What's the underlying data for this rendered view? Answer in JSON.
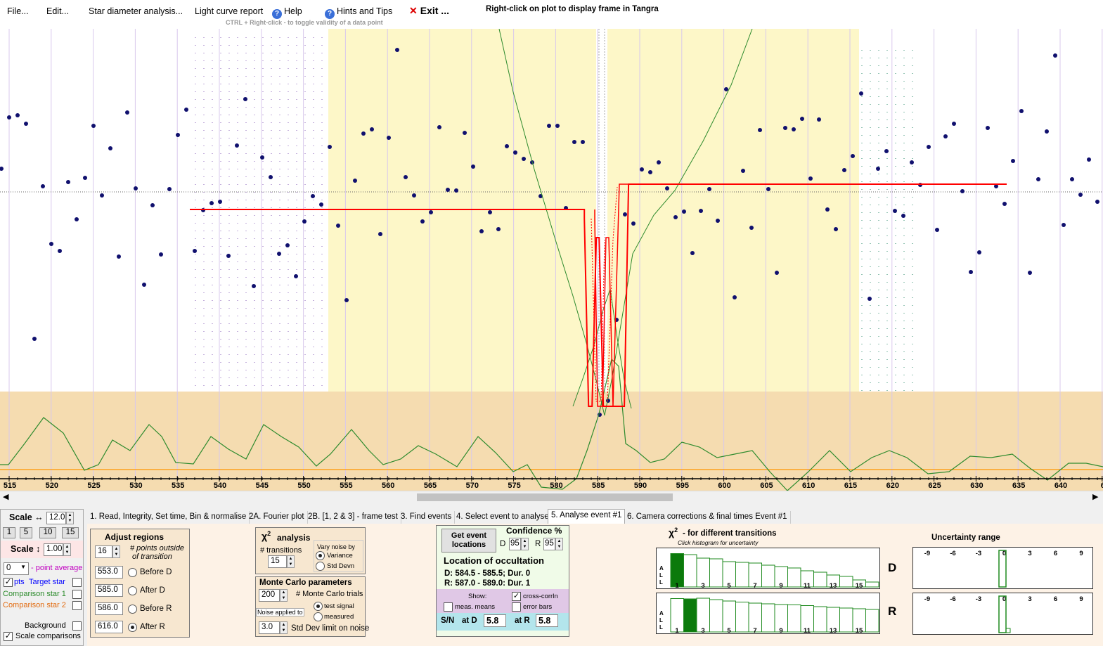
{
  "menu": {
    "file": "File...",
    "edit": "Edit...",
    "star_diameter": "Star diameter analysis...",
    "light_curve": "Light curve report",
    "help": "Help",
    "hints": "Hints and Tips",
    "exit": "Exit ...",
    "right_click_hint": "Right-click on plot to display frame in Tangra",
    "ctrl_hint": "CTRL + Right-click  -  to toggle validity of a data point"
  },
  "plot": {
    "x_ticks": [
      "515",
      "520",
      "525",
      "530",
      "535",
      "540",
      "545",
      "550",
      "555",
      "560",
      "565",
      "570",
      "575",
      "580",
      "585",
      "590",
      "595",
      "600",
      "605",
      "610",
      "615",
      "620",
      "625",
      "630",
      "635",
      "640",
      "6"
    ],
    "colors": {
      "point": "#10106e",
      "model": "#ff0000",
      "chi": "#2e8b2e",
      "highlight": "#fdf7c8",
      "lower": "#f5dcb0"
    }
  },
  "chart_data": {
    "type": "scatter",
    "x_axis_ticks": [
      515,
      520,
      525,
      530,
      535,
      540,
      545,
      550,
      555,
      560,
      565,
      570,
      575,
      580,
      585,
      590,
      595,
      600,
      605,
      610,
      615,
      620,
      625,
      630,
      635,
      640
    ],
    "model_D": 584.5,
    "model_R": 587.5,
    "grid": true
  },
  "tabs": [
    "1.  Read, Integrity, Set time, Bin & normalise",
    "2A. Fourier plot",
    "2B. [1, 2 & 3] - frame test",
    "3. Find events",
    "4. Select event to analyse",
    "5. Analyse event #1",
    "6. Camera corrections & final times Event #1"
  ],
  "left": {
    "scale_h_label": "Scale ↔",
    "scale_h_value": "12.0",
    "scale_buttons": [
      "1",
      "5",
      "10",
      "15"
    ],
    "scale_v_label": "Scale ↕",
    "scale_v_value": "1.00",
    "point_avg_value": "0",
    "point_avg_label": "- point average",
    "pts": "pts",
    "target": "Target star",
    "comp1": "Comparison star 1",
    "comp2": "Comparison star 2",
    "background": "Background",
    "scale_comparisons": "Scale comparisons"
  },
  "adjust": {
    "title": "Adjust regions",
    "points_value": "16",
    "points_label1": "# points outside",
    "points_label2": "of transition",
    "before_d_val": "553.0",
    "before_d": "Before D",
    "after_d_val": "585.0",
    "after_d": "After D",
    "before_r_val": "586.0",
    "before_r": "Before R",
    "after_r_val": "616.0",
    "after_r": "After R"
  },
  "chi": {
    "title": "analysis",
    "transitions_label": "# transitions",
    "transitions_value": "15",
    "vary_label": "Vary noise by",
    "variance": "Variance",
    "std_devn": "Std Devn"
  },
  "mc": {
    "title": "Monte Carlo parameters",
    "trials_value": "200",
    "trials_label": "# Monte Carlo trials",
    "noise_applied": "Noise applied to",
    "test_signal": "test signal",
    "measured": "measured",
    "std_value": "3.0",
    "std_label": "Std Dev limit on noise"
  },
  "event": {
    "get_btn1": "Get event",
    "get_btn2": "locations",
    "confidence": "Confidence %",
    "d_label": "D",
    "d_value": "95",
    "r_label": "R",
    "r_value": "95",
    "location_title": "Location of occultation",
    "d_line": "D: 584.5 - 585.5; Dur. 0",
    "r_line": "R: 587.0 - 589.0; Dur. 1",
    "show": "Show:",
    "cross": "cross-corrln",
    "means": "meas. means",
    "error_bars": "error bars",
    "sn": "S/N",
    "at_d": "at D",
    "at_d_val": "5.8",
    "at_r": "at R",
    "at_r_val": "5.8"
  },
  "histogram": {
    "title": "- for different transitions",
    "subtitle": "Click histogram for uncertainty",
    "all": [
      "A",
      "L",
      "L"
    ],
    "x_labels": [
      "1",
      "3",
      "5",
      "7",
      "9",
      "11",
      "13",
      "15"
    ],
    "d": "D",
    "r": "R",
    "d_bars": [
      0.95,
      0.92,
      0.82,
      0.8,
      0.72,
      0.7,
      0.68,
      0.62,
      0.58,
      0.54,
      0.46,
      0.42,
      0.34,
      0.3,
      0.2,
      0.14
    ],
    "r_bars": [
      0.95,
      0.94,
      0.96,
      0.92,
      0.88,
      0.85,
      0.82,
      0.8,
      0.78,
      0.77,
      0.75,
      0.72,
      0.7,
      0.68,
      0.66,
      0.64
    ]
  },
  "uncertainty": {
    "title": "Uncertainty range",
    "ticks": [
      "-9",
      "-6",
      "-3",
      "0",
      "3",
      "6",
      "9"
    ]
  }
}
